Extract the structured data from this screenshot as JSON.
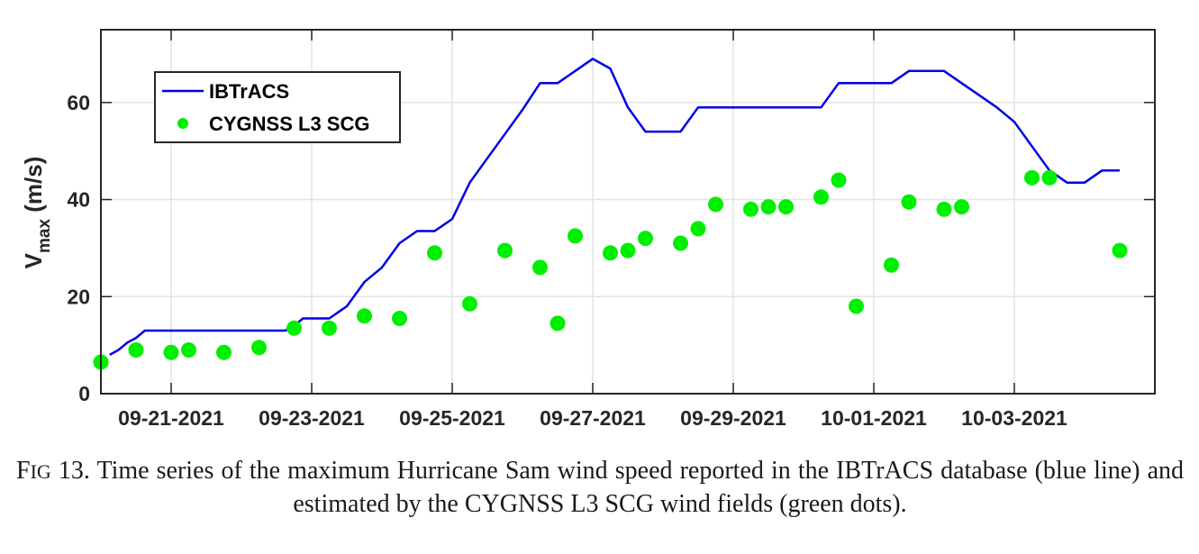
{
  "chart_data": {
    "type": "line",
    "ylabel_base": "V",
    "ylabel_sub": "max",
    "ylabel_unit": " (m/s)",
    "ylim": [
      0,
      75
    ],
    "yticks": [
      0,
      20,
      40,
      60
    ],
    "x_start": "09-20-2021",
    "x_end": "10-05-2021",
    "xticks": [
      "09-21-2021",
      "09-23-2021",
      "09-25-2021",
      "09-27-2021",
      "09-29-2021",
      "10-01-2021",
      "10-03-2021"
    ],
    "grid": true,
    "legend_position": "top-left",
    "series": [
      {
        "name": "IBTrACS",
        "kind": "line",
        "color": "#0000e6",
        "points": [
          [
            "09-20-2021 03:00",
            8
          ],
          [
            "09-20-2021 06:00",
            9
          ],
          [
            "09-20-2021 09:00",
            10.5
          ],
          [
            "09-20-2021 12:00",
            11.5
          ],
          [
            "09-20-2021 15:00",
            13
          ],
          [
            "09-21-2021 00:00",
            13
          ],
          [
            "09-22-2021 00:00",
            13
          ],
          [
            "09-22-2021 15:00",
            13
          ],
          [
            "09-22-2021 18:00",
            14
          ],
          [
            "09-22-2021 21:00",
            15.5
          ],
          [
            "09-23-2021 00:00",
            15.5
          ],
          [
            "09-23-2021 06:00",
            15.5
          ],
          [
            "09-23-2021 12:00",
            18
          ],
          [
            "09-23-2021 18:00",
            23
          ],
          [
            "09-24-2021 00:00",
            26
          ],
          [
            "09-24-2021 06:00",
            31
          ],
          [
            "09-24-2021 12:00",
            33.5
          ],
          [
            "09-24-2021 18:00",
            33.5
          ],
          [
            "09-25-2021 00:00",
            36
          ],
          [
            "09-25-2021 06:00",
            43.5
          ],
          [
            "09-25-2021 12:00",
            48.5
          ],
          [
            "09-25-2021 18:00",
            53.5
          ],
          [
            "09-26-2021 00:00",
            58.5
          ],
          [
            "09-26-2021 06:00",
            64
          ],
          [
            "09-26-2021 12:00",
            64
          ],
          [
            "09-26-2021 18:00",
            66.5
          ],
          [
            "09-27-2021 00:00",
            69
          ],
          [
            "09-27-2021 06:00",
            67
          ],
          [
            "09-27-2021 12:00",
            59
          ],
          [
            "09-27-2021 18:00",
            54
          ],
          [
            "09-28-2021 00:00",
            54
          ],
          [
            "09-28-2021 06:00",
            54
          ],
          [
            "09-28-2021 12:00",
            59
          ],
          [
            "09-29-2021 00:00",
            59
          ],
          [
            "09-30-2021 00:00",
            59
          ],
          [
            "09-30-2021 06:00",
            59
          ],
          [
            "09-30-2021 12:00",
            64
          ],
          [
            "10-01-2021 00:00",
            64
          ],
          [
            "10-01-2021 06:00",
            64
          ],
          [
            "10-01-2021 12:00",
            66.5
          ],
          [
            "10-02-2021 00:00",
            66.5
          ],
          [
            "10-02-2021 06:00",
            64
          ],
          [
            "10-02-2021 12:00",
            61.5
          ],
          [
            "10-02-2021 18:00",
            59
          ],
          [
            "10-03-2021 00:00",
            56
          ],
          [
            "10-03-2021 06:00",
            51
          ],
          [
            "10-03-2021 12:00",
            46
          ],
          [
            "10-03-2021 18:00",
            43.5
          ],
          [
            "10-04-2021 00:00",
            43.5
          ],
          [
            "10-04-2021 06:00",
            46
          ],
          [
            "10-04-2021 12:00",
            46
          ]
        ]
      },
      {
        "name": "CYGNSS L3 SCG",
        "kind": "scatter",
        "color": "#00ee00",
        "points": [
          [
            "09-20-2021 00:00",
            6.5
          ],
          [
            "09-20-2021 12:00",
            9
          ],
          [
            "09-21-2021 00:00",
            8.5
          ],
          [
            "09-21-2021 06:00",
            9
          ],
          [
            "09-21-2021 18:00",
            8.5
          ],
          [
            "09-22-2021 06:00",
            9.5
          ],
          [
            "09-22-2021 18:00",
            13.5
          ],
          [
            "09-23-2021 06:00",
            13.5
          ],
          [
            "09-23-2021 18:00",
            16
          ],
          [
            "09-24-2021 06:00",
            15.5
          ],
          [
            "09-24-2021 18:00",
            29
          ],
          [
            "09-25-2021 06:00",
            18.5
          ],
          [
            "09-25-2021 18:00",
            29.5
          ],
          [
            "09-26-2021 06:00",
            26
          ],
          [
            "09-26-2021 12:00",
            14.5
          ],
          [
            "09-26-2021 18:00",
            32.5
          ],
          [
            "09-27-2021 06:00",
            29
          ],
          [
            "09-27-2021 12:00",
            29.5
          ],
          [
            "09-27-2021 18:00",
            32
          ],
          [
            "09-28-2021 06:00",
            31
          ],
          [
            "09-28-2021 12:00",
            34
          ],
          [
            "09-28-2021 18:00",
            39
          ],
          [
            "09-29-2021 06:00",
            38
          ],
          [
            "09-29-2021 12:00",
            38.5
          ],
          [
            "09-29-2021 18:00",
            38.5
          ],
          [
            "09-30-2021 06:00",
            40.5
          ],
          [
            "09-30-2021 12:00",
            44
          ],
          [
            "09-30-2021 18:00",
            18
          ],
          [
            "10-01-2021 06:00",
            26.5
          ],
          [
            "10-01-2021 12:00",
            39.5
          ],
          [
            "10-02-2021 00:00",
            38
          ],
          [
            "10-02-2021 06:00",
            38.5
          ],
          [
            "10-03-2021 06:00",
            44.5
          ],
          [
            "10-03-2021 12:00",
            44.5
          ],
          [
            "10-04-2021 12:00",
            29.5
          ]
        ]
      }
    ]
  },
  "caption": {
    "fig_prefix": "F",
    "fig_rest": "IG",
    "fig_number": " 13.",
    "text": " Time series of the maximum Hurricane Sam wind speed reported in the IBTrACS database (blue line) and estimated by the CYGNSS L3 SCG wind fields (green dots)."
  }
}
